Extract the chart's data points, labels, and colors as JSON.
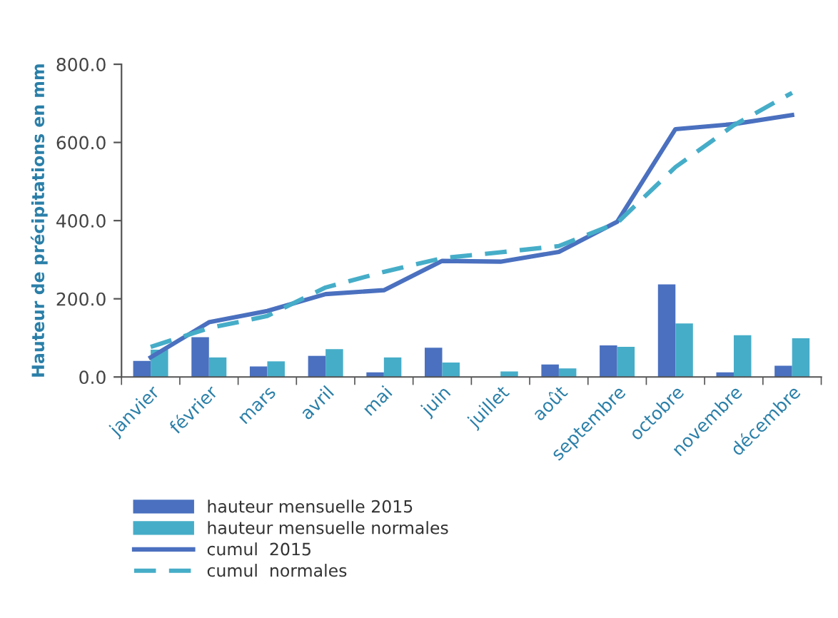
{
  "chart_data": {
    "type": "bar",
    "ylabel": "Hauteur de précipitations en mm",
    "categories": [
      "janvier",
      "février",
      "mars",
      "avril",
      "mai",
      "juin",
      "juillet",
      "août",
      "septembre",
      "octobre",
      "novembre",
      "décembre"
    ],
    "series": [
      {
        "name": "hauteur mensuelle 2015",
        "color": "#4a70bf",
        "values": [
          41,
          102,
          27,
          54,
          12,
          75,
          0,
          32,
          81,
          237,
          12,
          29
        ]
      },
      {
        "name": "hauteur mensuelle normales",
        "color": "#46adc8",
        "values": [
          70,
          50,
          40,
          71,
          50,
          37,
          14,
          22,
          77,
          137,
          107,
          99
        ]
      },
      {
        "name": "cumul  2015",
        "type": "line",
        "color": "#4a70bf",
        "line_style": "solid",
        "values": [
          50,
          140,
          169,
          212,
          222,
          297,
          295,
          320,
          397,
          634,
          647,
          670
        ]
      },
      {
        "name": "cumul  normales",
        "type": "line",
        "color": "#46adc8",
        "line_style": "dashed",
        "values": [
          77,
          125,
          156,
          229,
          269,
          304,
          319,
          335,
          394,
          537,
          644,
          727
        ]
      }
    ],
    "ylim": [
      0,
      800
    ],
    "yticks": [
      {
        "value": 0,
        "label": "0.0"
      },
      {
        "value": 200,
        "label": "200.0"
      },
      {
        "value": 400,
        "label": "400.0"
      },
      {
        "value": 600,
        "label": "600.0"
      },
      {
        "value": 800,
        "label": "800.0"
      }
    ],
    "grid": false,
    "legend": "bottom"
  }
}
